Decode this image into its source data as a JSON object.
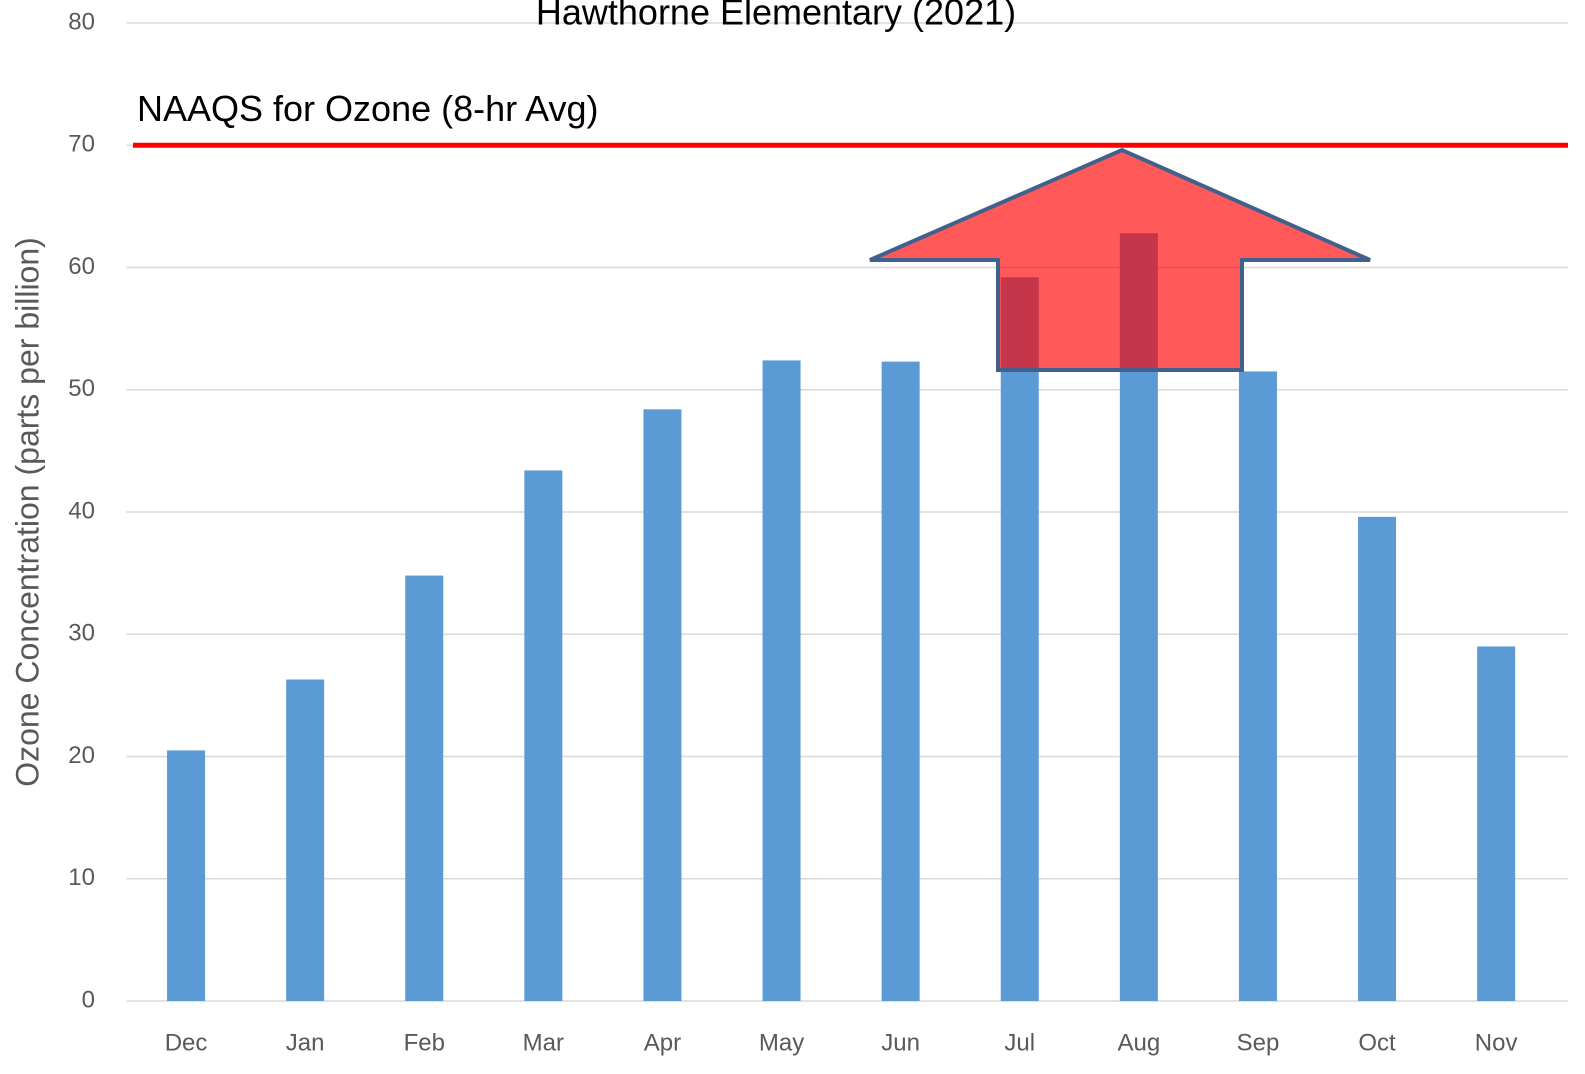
{
  "chart_data": {
    "type": "bar",
    "title": "Hawthorne Elementary (2021)",
    "y_label": "Ozone Concentration (parts per billion)",
    "categories": [
      "Dec",
      "Jan",
      "Feb",
      "Mar",
      "Apr",
      "May",
      "Jun",
      "Jul",
      "Aug",
      "Sep",
      "Oct",
      "Nov"
    ],
    "values": [
      20.5,
      26.3,
      34.8,
      43.4,
      48.4,
      52.4,
      52.3,
      59.2,
      62.8,
      51.5,
      39.6,
      29.0
    ],
    "color": "#5b9bd5",
    "ylim": [
      0,
      80
    ],
    "yticks": [
      0,
      10,
      20,
      30,
      40,
      50,
      60,
      70,
      80
    ],
    "grid": true,
    "reference_line": {
      "value": 70,
      "label": "NAAQS for Ozone (8-hr Avg)",
      "color": "#ff0000"
    }
  }
}
